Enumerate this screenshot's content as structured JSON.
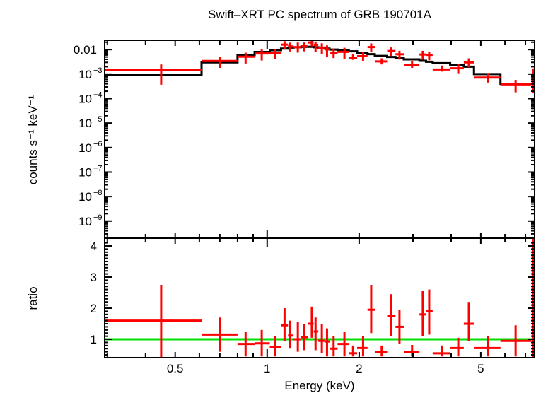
{
  "chart_data": {
    "type": "scatter",
    "title": "Swift–XRT PC spectrum of GRB 190701A",
    "xlabel": "Energy (keV)",
    "ylabel_top": "counts s⁻¹ keV⁻¹",
    "ylabel_bottom": "ratio",
    "xscale": "log",
    "xlim": [
      0.294,
      7.5
    ],
    "ylim_top": [
      2e-10,
      0.024
    ],
    "ylim_bottom": [
      0.41,
      4.25
    ],
    "x_ticks": [
      "0.5",
      "1",
      "2",
      "5"
    ],
    "x_tick_values": [
      0.5,
      1,
      2,
      5
    ],
    "y_ticks_top": [
      {
        "value": 0.01,
        "base": "0.01",
        "exp": ""
      },
      {
        "value": 0.001,
        "base": "10",
        "exp": "−3"
      },
      {
        "value": 0.0001,
        "base": "10",
        "exp": "−4"
      },
      {
        "value": 1e-05,
        "base": "10",
        "exp": "−5"
      },
      {
        "value": 1e-06,
        "base": "10",
        "exp": "−6"
      },
      {
        "value": 1e-07,
        "base": "10",
        "exp": "−7"
      },
      {
        "value": 1e-08,
        "base": "10",
        "exp": "−8"
      },
      {
        "value": 1e-09,
        "base": "10",
        "exp": "−9"
      }
    ],
    "y_ticks_bottom": [
      "1",
      "2",
      "3",
      "4"
    ],
    "y_tick_values_bottom": [
      1,
      2,
      3,
      4
    ],
    "colors": {
      "data": "#ff0000",
      "model": "#000000",
      "unity": "#00e000"
    },
    "bins": {
      "e_lo": [
        0.294,
        0.61,
        0.8,
        0.91,
        1.02,
        1.11,
        1.17,
        1.22,
        1.29,
        1.36,
        1.42,
        1.47,
        1.54,
        1.6,
        1.7,
        1.85,
        1.97,
        2.13,
        2.25,
        2.47,
        2.63,
        2.8,
        3.15,
        3.31,
        3.48,
        3.97,
        4.4,
        4.75,
        5.8,
        7.3
      ],
      "e_hi": [
        0.61,
        0.8,
        0.91,
        1.02,
        1.11,
        1.17,
        1.22,
        1.29,
        1.36,
        1.42,
        1.47,
        1.54,
        1.6,
        1.7,
        1.85,
        1.97,
        2.13,
        2.25,
        2.47,
        2.63,
        2.8,
        3.15,
        3.31,
        3.48,
        3.97,
        4.4,
        4.75,
        5.8,
        7.3,
        7.5
      ],
      "energy": [
        0.45,
        0.7,
        0.85,
        0.96,
        1.06,
        1.14,
        1.19,
        1.26,
        1.32,
        1.4,
        1.44,
        1.51,
        1.57,
        1.65,
        1.79,
        1.91,
        2.06,
        2.19,
        2.37,
        2.55,
        2.71,
        2.98,
        3.23,
        3.39,
        3.73,
        4.22,
        4.57,
        5.27,
        6.5,
        7.4
      ],
      "ratio": [
        1.6,
        1.15,
        0.85,
        0.87,
        0.75,
        1.45,
        1.12,
        1.0,
        1.07,
        1.5,
        1.25,
        0.95,
        0.93,
        0.7,
        0.85,
        0.55,
        0.72,
        1.95,
        0.6,
        1.75,
        1.4,
        0.6,
        1.8,
        1.9,
        0.55,
        0.72,
        1.5,
        0.72,
        0.95,
        1.0
      ],
      "ratio_hi": [
        2.75,
        1.7,
        1.25,
        1.3,
        1.1,
        2.0,
        1.6,
        1.55,
        1.5,
        2.05,
        1.7,
        1.5,
        1.35,
        1.1,
        1.25,
        0.8,
        1.1,
        2.75,
        0.8,
        2.45,
        1.95,
        0.82,
        2.55,
        2.6,
        0.8,
        1.05,
        2.2,
        1.1,
        1.45,
        4.25
      ],
      "ratio_lo": [
        0.41,
        0.6,
        0.45,
        0.45,
        0.45,
        0.95,
        0.7,
        0.6,
        0.65,
        1.05,
        0.65,
        0.55,
        0.45,
        0.45,
        0.45,
        0.45,
        0.45,
        1.2,
        0.45,
        1.1,
        0.85,
        0.45,
        1.1,
        1.15,
        0.45,
        0.45,
        0.95,
        0.45,
        0.45,
        0.41
      ],
      "model": [
        0.0009,
        0.003,
        0.006,
        0.008,
        0.0095,
        0.011,
        0.012,
        0.0125,
        0.013,
        0.013,
        0.0125,
        0.012,
        0.011,
        0.01,
        0.0095,
        0.0085,
        0.0075,
        0.0065,
        0.0055,
        0.005,
        0.0046,
        0.004,
        0.0035,
        0.0032,
        0.0028,
        0.0024,
        0.002,
        0.001,
        0.0004,
        0.0004
      ]
    }
  }
}
